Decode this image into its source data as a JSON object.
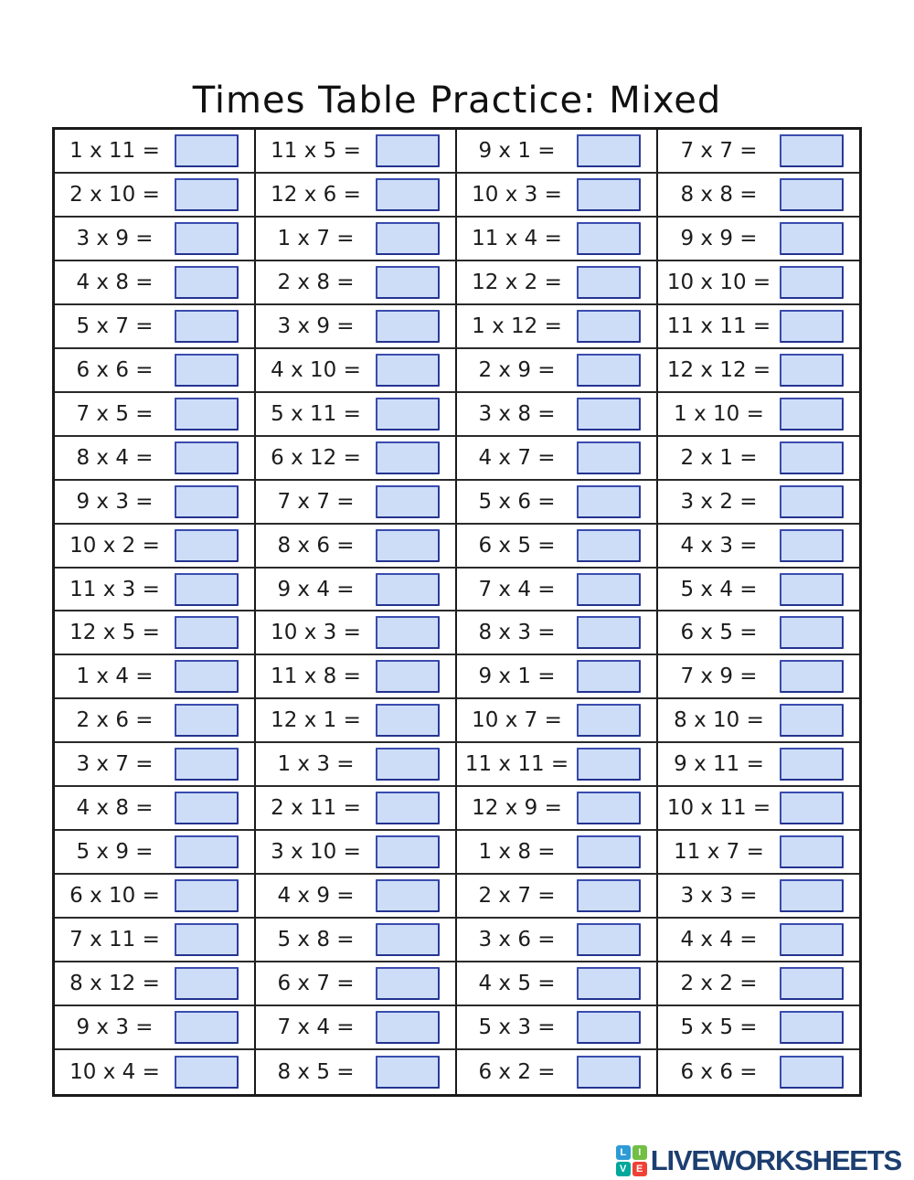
{
  "page": {
    "title": "Times Table Practice: Mixed"
  },
  "worksheet": {
    "rows": [
      [
        "1 x 11 =",
        "11 x 5 =",
        "9 x 1 =",
        "7 x 7 ="
      ],
      [
        "2 x 10 =",
        "12 x 6 =",
        "10 x 3 =",
        "8 x 8 ="
      ],
      [
        "3 x 9 =",
        "1 x 7 =",
        "11 x 4 =",
        "9 x 9 ="
      ],
      [
        "4 x 8 =",
        "2 x 8 =",
        "12 x 2 =",
        "10 x 10 ="
      ],
      [
        "5 x 7 =",
        "3 x 9 =",
        "1 x 12 =",
        "11 x 11 ="
      ],
      [
        "6 x 6 =",
        "4 x 10 =",
        "2 x 9 =",
        "12 x 12 ="
      ],
      [
        "7 x 5 =",
        "5 x 11 =",
        "3 x 8 =",
        "1 x 10 ="
      ],
      [
        "8 x 4 =",
        "6 x 12 =",
        "4 x 7 =",
        "2 x 1 ="
      ],
      [
        "9 x 3 =",
        "7 x 7 =",
        "5 x 6 =",
        "3 x 2 ="
      ],
      [
        "10 x 2 =",
        "8 x 6 =",
        "6 x 5 =",
        "4 x 3 ="
      ],
      [
        "11 x 3 =",
        "9 x 4 =",
        "7 x 4 =",
        "5 x 4 ="
      ],
      [
        "12 x 5 =",
        "10 x 3 =",
        "8 x 3 =",
        "6 x 5 ="
      ],
      [
        "1 x 4 =",
        "11 x 8 =",
        "9 x 1 =",
        "7 x 9 ="
      ],
      [
        "2 x 6 =",
        "12 x 1 =",
        "10 x 7 =",
        "8 x 10 ="
      ],
      [
        "3 x 7 =",
        "1 x 3 =",
        "11 x 11 =",
        "9 x 11 ="
      ],
      [
        "4 x 8 =",
        "2 x 11 =",
        "12 x 9 =",
        "10 x 11 ="
      ],
      [
        "5 x 9 =",
        "3 x 10 =",
        "1 x 8 =",
        "11 x 7 ="
      ],
      [
        "6 x 10 =",
        "4 x 9 =",
        "2 x 7 =",
        "3 x 3 ="
      ],
      [
        "7 x 11 =",
        "5 x 8 =",
        "3 x 6 =",
        "4 x 4 ="
      ],
      [
        "8 x 12 =",
        "6 x 7 =",
        "4 x 5 =",
        "2 x 2 ="
      ],
      [
        "9 x 3 =",
        "7 x 4 =",
        "5 x 3 =",
        "5 x 5 ="
      ],
      [
        "10 x 4 =",
        "8 x 5 =",
        "6 x 2 =",
        "6 x 6 ="
      ]
    ],
    "answer_box_fill": "#cdddf8",
    "answer_box_border": "#3a4cae"
  },
  "footer": {
    "brand": "LIVEWORKSHEETS",
    "brand_color": "#1c3e70",
    "logo_squares": [
      {
        "letter": "L",
        "color": "#2e9bd6"
      },
      {
        "letter": "I",
        "color": "#71bf44"
      },
      {
        "letter": "V",
        "color": "#00a79d"
      },
      {
        "letter": "E",
        "color": "#ef4136"
      }
    ]
  }
}
